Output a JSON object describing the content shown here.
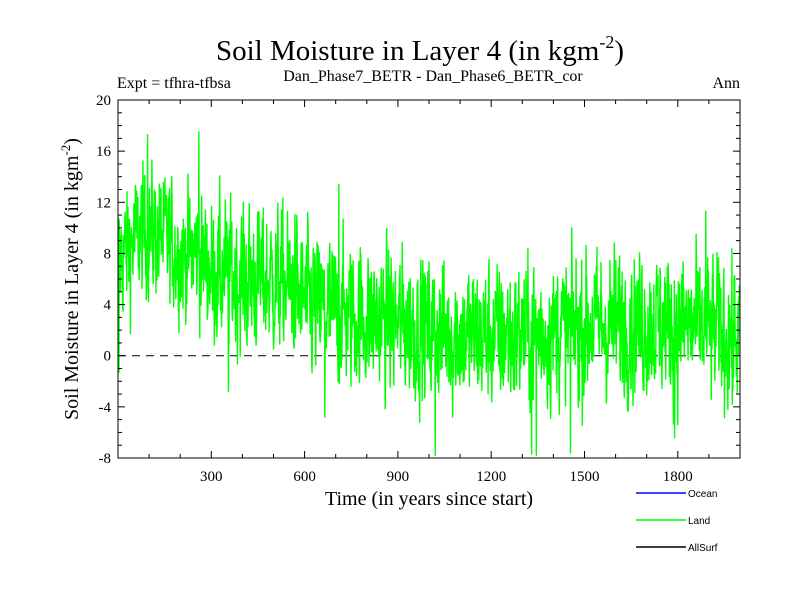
{
  "chart_data": {
    "type": "line",
    "title": "Soil Moisture in Layer 4 (in kgm",
    "title_sup": "-2",
    "title_close": ")",
    "subtitle_left": "Expt = tfhra-tfbsa",
    "subtitle_center": "Dan_Phase7_BETR - Dan_Phase6_BETR_cor",
    "subtitle_right": "Ann",
    "xlabel": "Time (in years since start)",
    "ylabel": "Soil Moisture in Layer 4 (in kgm",
    "ylabel_sup": "-2",
    "ylabel_close": ")",
    "xlim": [
      0,
      2000
    ],
    "ylim": [
      -8,
      20
    ],
    "x_ticks": [
      300,
      600,
      900,
      1200,
      1500,
      1800
    ],
    "y_ticks": [
      -8,
      -4,
      0,
      4,
      8,
      12,
      16,
      20
    ],
    "zero_line": true,
    "legend": [
      {
        "name": "Ocean",
        "color": "#0000ff"
      },
      {
        "name": "Land",
        "color": "#00ff00"
      },
      {
        "name": "AllSurf",
        "color": "#000000"
      }
    ],
    "series": [
      {
        "name": "Land",
        "color": "#00ff00",
        "note": "annual values, ~2000 years; trend points (year, mean) with interannual variability",
        "trend": [
          [
            0,
            7.5
          ],
          [
            50,
            9.0
          ],
          [
            100,
            9.8
          ],
          [
            150,
            9.2
          ],
          [
            200,
            8.0
          ],
          [
            250,
            8.0
          ],
          [
            300,
            6.6
          ],
          [
            400,
            6.0
          ],
          [
            500,
            5.8
          ],
          [
            560,
            5.5
          ],
          [
            620,
            3.8
          ],
          [
            700,
            3.4
          ],
          [
            800,
            3.0
          ],
          [
            900,
            2.6
          ],
          [
            1000,
            2.0
          ],
          [
            1100,
            1.6
          ],
          [
            1200,
            1.6
          ],
          [
            1300,
            1.6
          ],
          [
            1400,
            2.0
          ],
          [
            1500,
            2.3
          ],
          [
            1600,
            2.4
          ],
          [
            1700,
            2.6
          ],
          [
            1800,
            2.4
          ],
          [
            1900,
            2.2
          ],
          [
            2000,
            1.5
          ]
        ],
        "extremes": [
          [
            3,
            -1.3
          ],
          [
            95,
            17.3
          ],
          [
            260,
            17.5
          ],
          [
            355,
            -2.8
          ],
          [
            665,
            -4.8
          ],
          [
            710,
            13.4
          ],
          [
            1020,
            -7.8
          ],
          [
            1330,
            -7.7
          ],
          [
            1345,
            -7.9
          ],
          [
            1455,
            -7.6
          ],
          [
            1790,
            -6.4
          ],
          [
            1890,
            11.3
          ],
          [
            1975,
            -3.8
          ]
        ]
      }
    ]
  }
}
